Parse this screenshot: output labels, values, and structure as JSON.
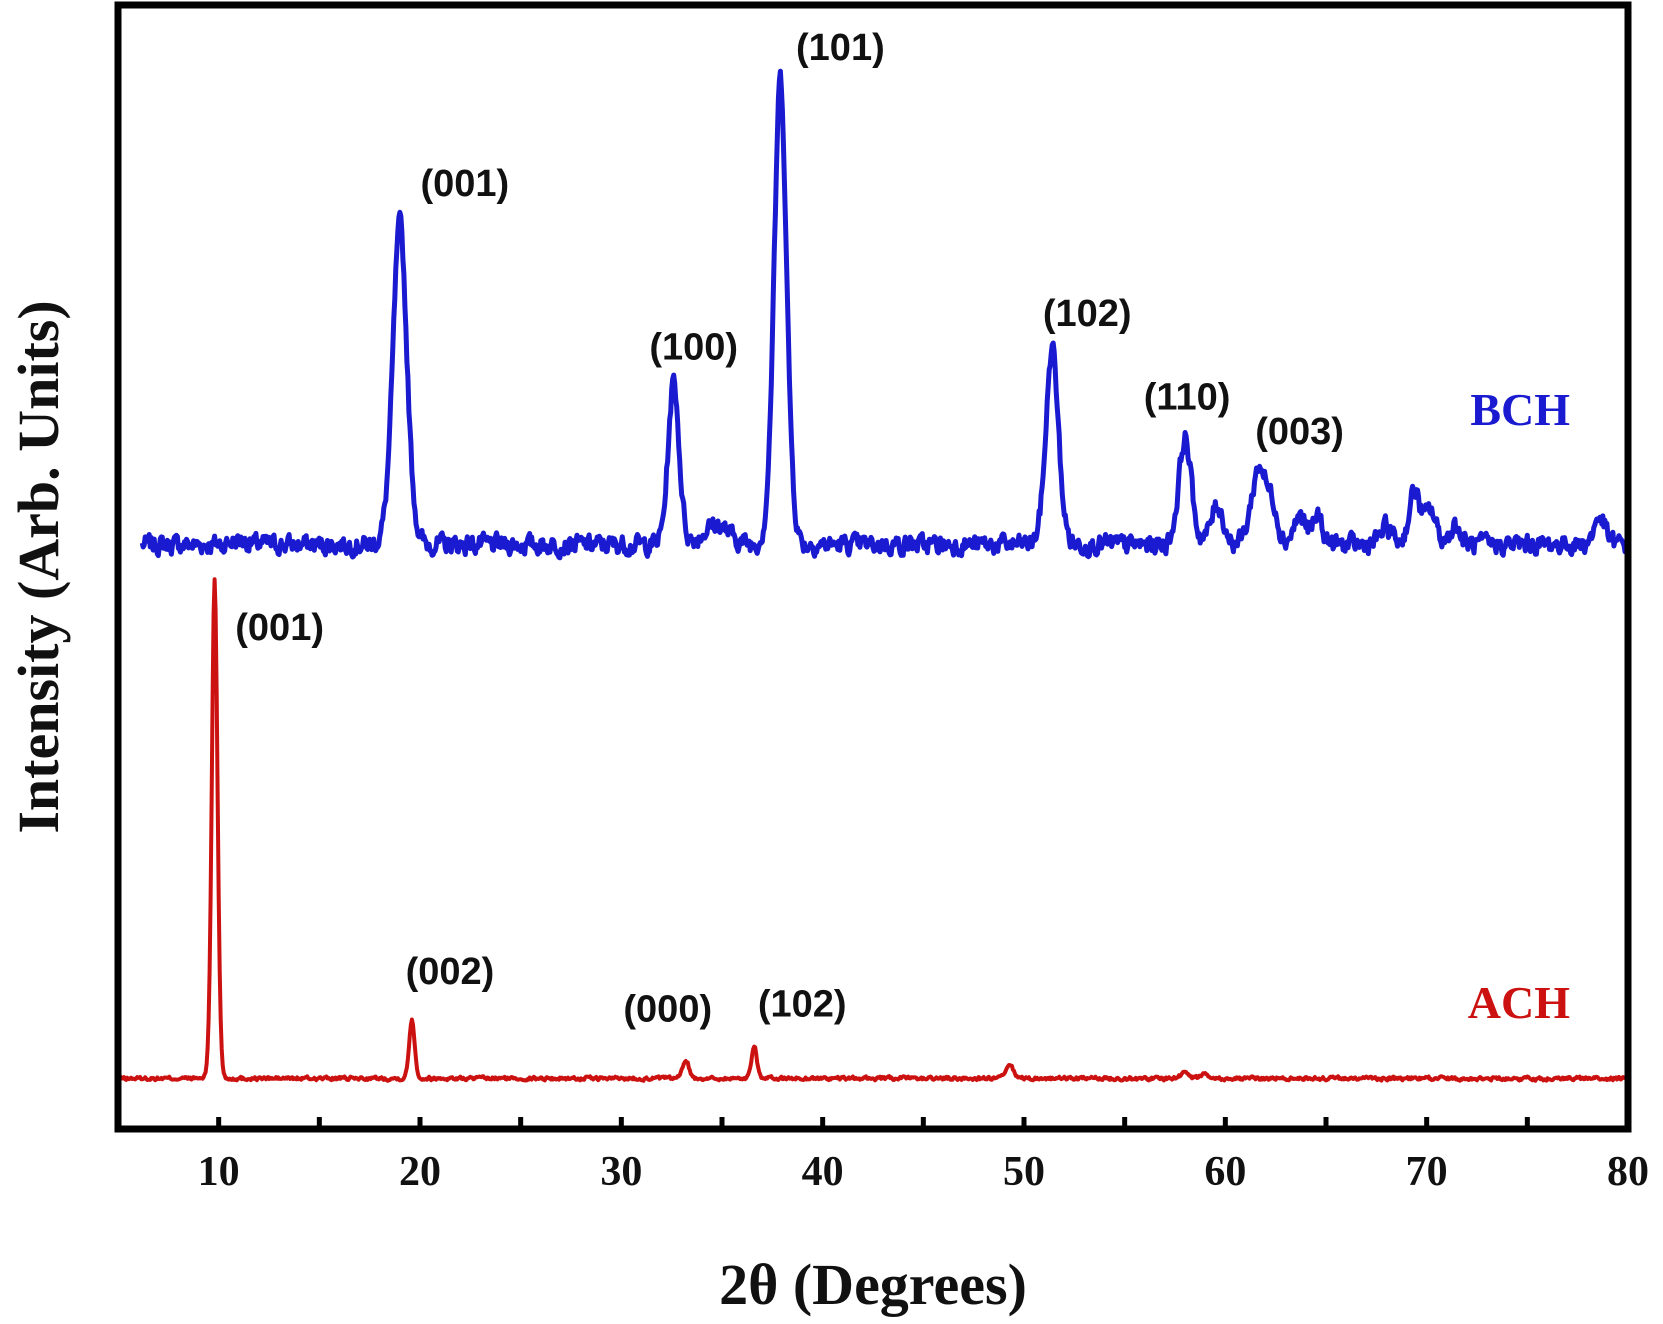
{
  "chart_data": {
    "type": "line",
    "title": "",
    "xlabel": "2θ (Degrees)",
    "ylabel": "Intensity (Arb. Units)",
    "xlim": [
      5,
      80
    ],
    "ylim": [
      0,
      100
    ],
    "xticks": [
      10,
      20,
      30,
      40,
      50,
      60,
      70,
      80
    ],
    "xtick_labels": [
      "10",
      "20",
      "30",
      "40",
      "50",
      "60",
      "70",
      "80"
    ],
    "grid": false,
    "legend": "none",
    "series": [
      {
        "name": "BCH",
        "color": "#1a1ad0",
        "x_start": 6.2,
        "x_end": 80,
        "baseline": 52,
        "peaks": [
          {
            "x": 11.0,
            "height": 0.4,
            "width": 0.5
          },
          {
            "x": 19.0,
            "height": 28.5,
            "width": 0.45
          },
          {
            "x": 32.6,
            "height": 14.5,
            "width": 0.35
          },
          {
            "x": 34.7,
            "height": 1.8,
            "width": 0.8
          },
          {
            "x": 37.9,
            "height": 41.5,
            "width": 0.4
          },
          {
            "x": 51.4,
            "height": 17.5,
            "width": 0.4
          },
          {
            "x": 58.0,
            "height": 9.5,
            "width": 0.4
          },
          {
            "x": 59.6,
            "height": 3.5,
            "width": 0.4
          },
          {
            "x": 61.7,
            "height": 7.0,
            "width": 0.5
          },
          {
            "x": 62.4,
            "height": 2.5,
            "width": 0.3
          },
          {
            "x": 63.7,
            "height": 2.5,
            "width": 0.4
          },
          {
            "x": 64.6,
            "height": 2.5,
            "width": 0.3
          },
          {
            "x": 68.0,
            "height": 1.5,
            "width": 0.4
          },
          {
            "x": 69.4,
            "height": 4.8,
            "width": 0.35
          },
          {
            "x": 70.2,
            "height": 3.0,
            "width": 0.35
          },
          {
            "x": 71.4,
            "height": 1.8,
            "width": 0.3
          },
          {
            "x": 78.6,
            "height": 2.5,
            "width": 0.35
          }
        ],
        "annotations": [
          {
            "text": "(001)",
            "x": 19.0
          },
          {
            "text": "(100)",
            "x": 32.6
          },
          {
            "text": "(101)",
            "x": 37.9
          },
          {
            "text": "(102)",
            "x": 51.4
          },
          {
            "text": "(110)",
            "x": 58.0
          },
          {
            "text": "(003)",
            "x": 61.7
          }
        ]
      },
      {
        "name": "ACH",
        "color": "#cc1111",
        "x_start": 5.0,
        "x_end": 80,
        "baseline": 4.5,
        "peaks": [
          {
            "x": 9.8,
            "height": 44.5,
            "width": 0.18
          },
          {
            "x": 19.6,
            "height": 5.3,
            "width": 0.17
          },
          {
            "x": 33.2,
            "height": 1.7,
            "width": 0.2
          },
          {
            "x": 36.6,
            "height": 3.0,
            "width": 0.17
          },
          {
            "x": 49.3,
            "height": 1.1,
            "width": 0.25
          },
          {
            "x": 58.0,
            "height": 0.5,
            "width": 0.3
          },
          {
            "x": 59.0,
            "height": 0.6,
            "width": 0.2
          }
        ],
        "annotations": [
          {
            "text": "(001)",
            "x": 9.8
          },
          {
            "text": "(002)",
            "x": 19.6
          },
          {
            "text": "(000)",
            "x": 33.2
          },
          {
            "text": "(102)",
            "x": 36.6
          }
        ]
      }
    ]
  }
}
